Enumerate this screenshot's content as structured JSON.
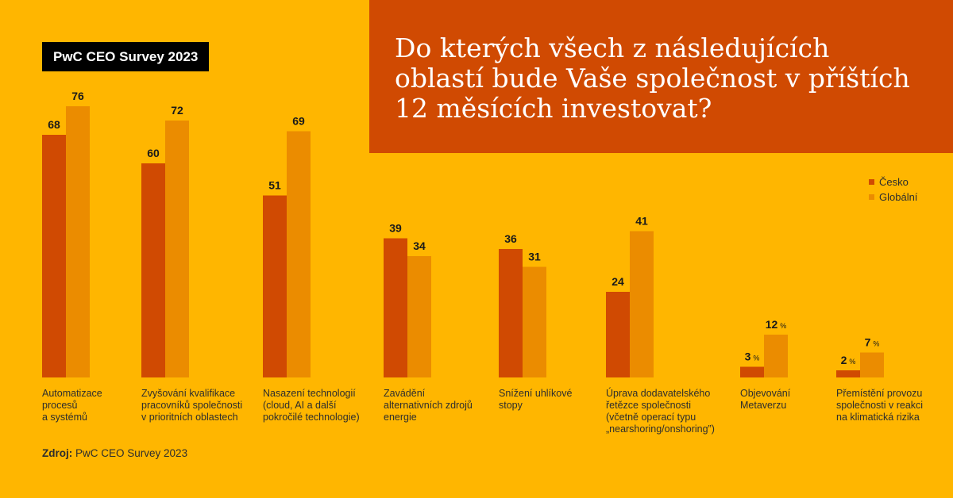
{
  "badge": "PwC CEO Survey 2023",
  "title": "Do kterých všech z následujících oblastí bude Vaše společnost v příštích 12 měsících investovat?",
  "source_label": "Zdroj:",
  "source_text": "PwC CEO Survey 2023",
  "colors": {
    "cesko": "#D04A02",
    "globalni": "#EB8C00",
    "background": "#FFB600",
    "title_bg": "#D04A02"
  },
  "chart_data": {
    "type": "bar",
    "categories": [
      "Automatizace procesů a systémů",
      "Zvyšování kvalifikace pracovníků společnosti v prioritních oblastech",
      "Nasazení technologií (cloud, AI a další pokročilé technologie)",
      "Zavádění alternativních zdrojů energie",
      "Snížení uhlíkové stopy",
      "Úprava dodavatelského řetězce společnosti (včetně operací typu „nearshoring/onshoring”)",
      "Objevování Metaverzu",
      "Přemístění provozu společnosti v reakci na klimatická rizika"
    ],
    "series": [
      {
        "name": "Česko",
        "values": [
          68,
          60,
          51,
          39,
          36,
          24,
          3,
          2
        ],
        "color": "#D04A02"
      },
      {
        "name": "Globální",
        "values": [
          76,
          72,
          69,
          34,
          31,
          41,
          12,
          7
        ],
        "color": "#EB8C00"
      }
    ],
    "value_labels": [
      [
        "68",
        "60",
        "51",
        "39",
        "36",
        "24",
        "3",
        "2"
      ],
      [
        "76",
        "72",
        "69",
        "34",
        "31",
        "41",
        "12",
        "7"
      ]
    ],
    "unit_suffix": "%",
    "ylim": [
      0,
      100
    ],
    "legend": "right",
    "grid": false
  }
}
